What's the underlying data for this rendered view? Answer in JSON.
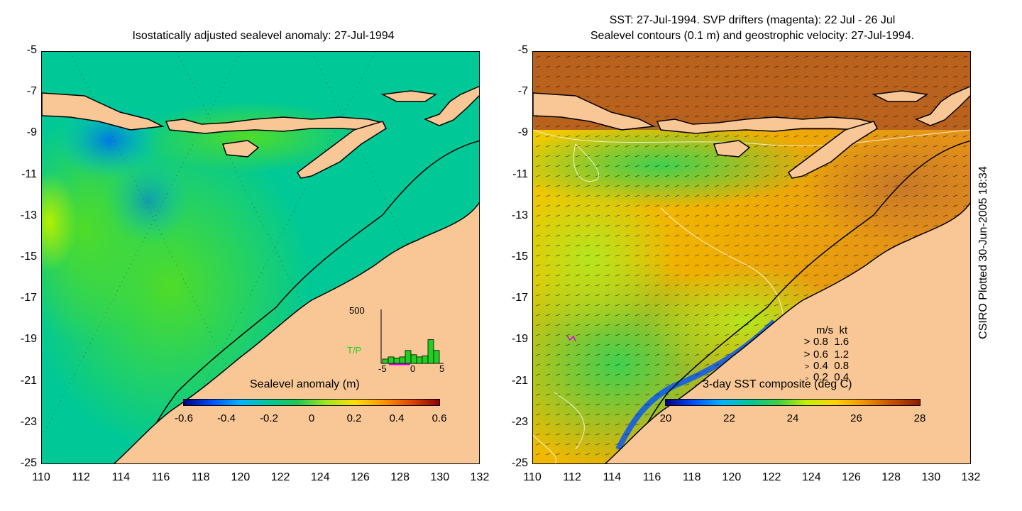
{
  "left_panel": {
    "title": "Isostatically adjusted sealevel anomaly: 27-Jul-1994",
    "colorbar": {
      "title": "Sealevel anomaly (m)",
      "ticks": [
        "-0.6",
        "-0.4",
        "-0.2",
        "0",
        "0.2",
        "0.4",
        "0.6"
      ],
      "colors": [
        "#00007f",
        "#0050ff",
        "#00b4ff",
        "#00c896",
        "#20c850",
        "#a0e61e",
        "#ffe000",
        "#ff9600",
        "#e04800",
        "#8c0000"
      ]
    },
    "inset": {
      "label": "T/P",
      "ymax_label": "500",
      "x_ticks": [
        "-5",
        "0",
        "5"
      ],
      "bar_counts": [
        40,
        60,
        50,
        60,
        120,
        80,
        60,
        70,
        220,
        120
      ],
      "ymax": 500
    }
  },
  "right_panel": {
    "title_line1": "SST: 27-Jul-1994. SVP drifters (magenta): 22 Jul - 26 Jul",
    "title_line2": "Sealevel contours (0.1 m) and geostrophic velocity: 27-Jul-1994.",
    "colorbar": {
      "title": "3-day SST composite (deg C)",
      "ticks": [
        "20",
        "22",
        "24",
        "26",
        "28"
      ],
      "colors": [
        "#00007f",
        "#0050ff",
        "#00b4ff",
        "#00c896",
        "#40d040",
        "#c8f000",
        "#ffd200",
        "#f09600",
        "#c85000",
        "#8c1e00"
      ]
    },
    "velocity_legend": {
      "header_ms": "m/s",
      "header_kt": "kt",
      "rows": [
        {
          "ms": "0.8",
          "kt": "1.6"
        },
        {
          "ms": "0.6",
          "kt": "1.2"
        },
        {
          "ms": "0.4",
          "kt": "0.8"
        },
        {
          "ms": "0.2",
          "kt": "0.4"
        }
      ]
    }
  },
  "axes": {
    "lon_ticks": [
      "110",
      "112",
      "114",
      "116",
      "118",
      "120",
      "122",
      "124",
      "126",
      "128",
      "130",
      "132"
    ],
    "lat_ticks": [
      "-5",
      "-7",
      "-9",
      "-11",
      "-13",
      "-15",
      "-17",
      "-19",
      "-21",
      "-23",
      "-25"
    ],
    "lon_range": [
      110,
      132
    ],
    "lat_range": [
      -25,
      -5
    ]
  },
  "credit": "CSIRO Plotted 30-Jun-2005 18:34",
  "colors": {
    "land": "#f9c796",
    "ocean_left": "#00c896",
    "coastline": "#000000"
  }
}
